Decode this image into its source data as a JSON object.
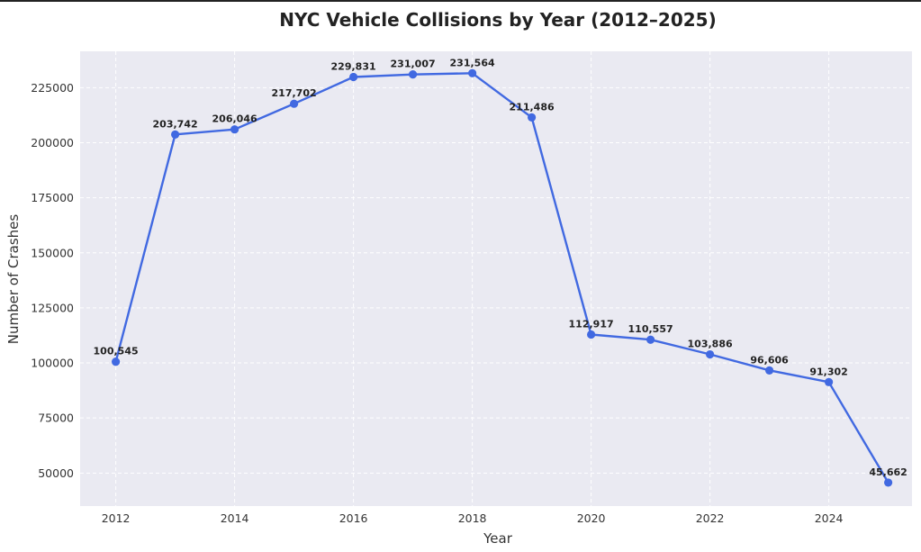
{
  "chart_data": {
    "type": "line",
    "title": "NYC Vehicle Collisions by Year (2012–2025)",
    "xlabel": "Year",
    "ylabel": "Number of Crashes",
    "x": [
      2012,
      2013,
      2014,
      2015,
      2016,
      2017,
      2018,
      2019,
      2020,
      2021,
      2022,
      2023,
      2024,
      2025
    ],
    "series": [
      {
        "values": [
          100545,
          203742,
          206046,
          217702,
          229831,
          231007,
          231564,
          211486,
          112917,
          110557,
          103886,
          96606,
          91302,
          45662
        ],
        "data_labels": [
          "100,545",
          "203,742",
          "206,046",
          "217,702",
          "229,831",
          "231,007",
          "231,564",
          "211,486",
          "112,917",
          "110,557",
          "103,886",
          "96,606",
          "91,302",
          "45,662"
        ],
        "color": "#4169e1",
        "marker": "circle"
      }
    ],
    "xticks": [
      2012,
      2014,
      2016,
      2018,
      2020,
      2022,
      2024
    ],
    "xtick_labels": [
      "2012",
      "2014",
      "2016",
      "2018",
      "2020",
      "2022",
      "2024"
    ],
    "yticks": [
      50000,
      75000,
      100000,
      125000,
      150000,
      175000,
      200000,
      225000
    ],
    "ytick_labels": [
      "50000",
      "75000",
      "100000",
      "125000",
      "150000",
      "175000",
      "200000",
      "225000"
    ],
    "xlim": [
      2011.4,
      2025.4
    ],
    "ylim": [
      35000,
      241500
    ],
    "grid": true,
    "grid_style": "dashed",
    "legend": false,
    "plot_background": "#eaeaf2",
    "grid_color": "#ffffff"
  }
}
